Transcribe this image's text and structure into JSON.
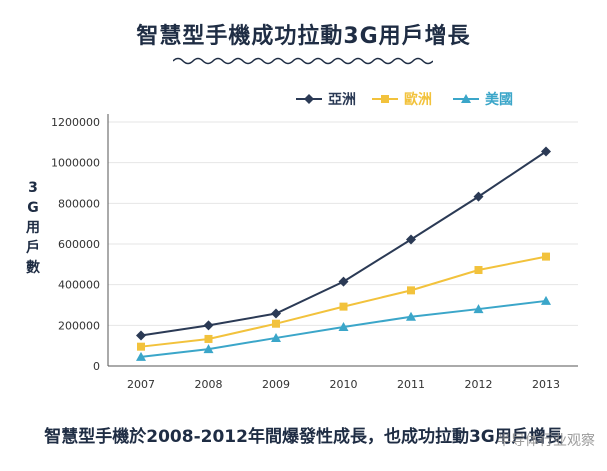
{
  "title": "智慧型手機成功拉動3G用戶增長",
  "caption": "智慧型手機於2008-2012年間爆發性成長，也成功拉動3G用戶增長",
  "watermark": "半导体行业观察",
  "chart_data": {
    "type": "line",
    "ylabel": "3G用戶數",
    "x": [
      "2007",
      "2008",
      "2009",
      "2010",
      "2011",
      "2012",
      "2013"
    ],
    "ylim": [
      0,
      1200000
    ],
    "yticks": [
      "0",
      "200000",
      "400000",
      "600000",
      "800000",
      "1000000",
      "1200000"
    ],
    "grid": "horizontal",
    "legend_position": "top-right",
    "series": [
      {
        "name": "亞洲",
        "color": "#2b3a55",
        "marker": "diamond",
        "values": [
          150000,
          200000,
          258000,
          415000,
          622000,
          833000,
          1055000
        ]
      },
      {
        "name": "歐洲",
        "color": "#f2c23c",
        "marker": "square",
        "values": [
          95000,
          133000,
          208000,
          292000,
          372000,
          472000,
          538000
        ]
      },
      {
        "name": "美國",
        "color": "#3ba6c9",
        "marker": "triangle",
        "values": [
          45000,
          83000,
          138000,
          192000,
          242000,
          280000,
          320000
        ]
      }
    ]
  }
}
